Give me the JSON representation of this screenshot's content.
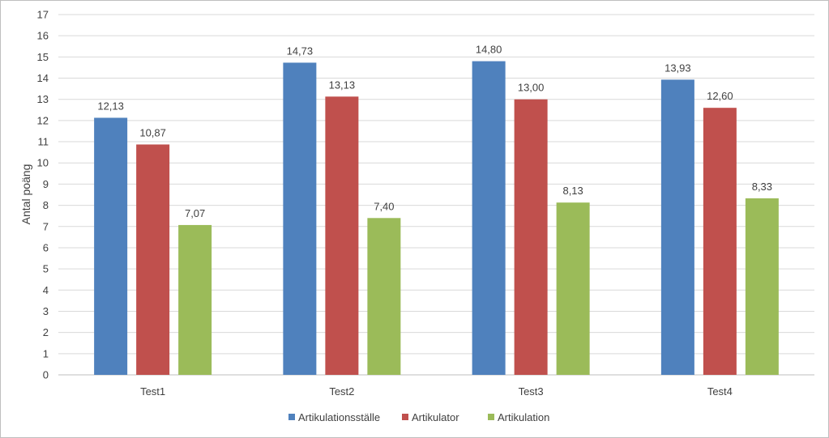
{
  "chart_data": {
    "type": "bar",
    "title": "",
    "xlabel": "",
    "ylabel": "Antal poäng",
    "ylim": [
      0,
      17
    ],
    "ytick_step": 1,
    "grid": true,
    "legend_position": "bottom",
    "categories": [
      "Test1",
      "Test2",
      "Test3",
      "Test4"
    ],
    "series": [
      {
        "name": "Artikulationsställe",
        "color": "#4f81bd",
        "values": [
          12.13,
          14.73,
          14.8,
          13.93
        ],
        "labels": [
          "12,13",
          "14,73",
          "14,80",
          "13,93"
        ]
      },
      {
        "name": "Artikulator",
        "color": "#c0504d",
        "values": [
          10.87,
          13.13,
          13.0,
          12.6
        ],
        "labels": [
          "10,87",
          "13,13",
          "13,00",
          "12,60"
        ]
      },
      {
        "name": "Artikulation",
        "color": "#9bbb59",
        "values": [
          7.07,
          7.4,
          8.13,
          8.33
        ],
        "labels": [
          "7,07",
          "7,40",
          "8,13",
          "8,33"
        ]
      }
    ],
    "colors": {
      "grid": "#d9d9d9",
      "axis": "#bfbfbf",
      "text": "#404040"
    }
  }
}
